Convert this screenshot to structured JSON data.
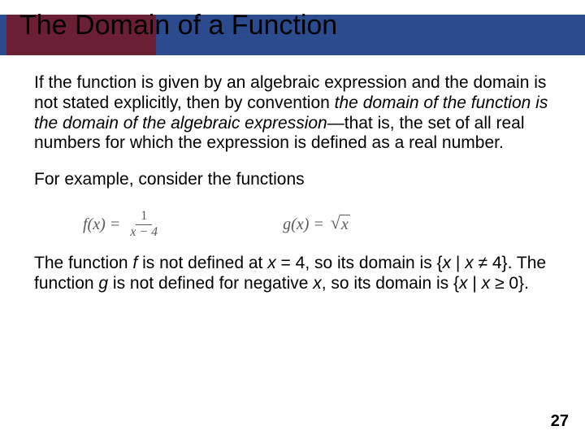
{
  "header": {
    "title": "The Domain of a Function",
    "blue_color": "#2b4b8e",
    "maroon_color": "#6b1f35"
  },
  "body": {
    "p1_a": "If the function is given by an algebraic expression and the domain is not stated explicitly, then by convention ",
    "p1_b": "the domain of the function is the domain of the algebraic expression",
    "p1_c": "—that is, the set of all real numbers for which the expression is defined as a real number.",
    "p2": "For example, consider the functions",
    "formula_f_lhs": "f(x)  =",
    "formula_f_num": "1",
    "formula_f_den": "x − 4",
    "formula_g_lhs": "g(x)  =",
    "formula_g_rad": "x",
    "p3_a": "The function ",
    "p3_b": "f",
    "p3_c": " is not defined at ",
    "p3_d": "x",
    "p3_e": " = 4, so its domain is {",
    "p3_f": "x",
    "p3_g": " | ",
    "p3_h": "x",
    "p3_i": " ≠ 4}. The function ",
    "p3_j": "g",
    "p3_k": " is not defined for negative ",
    "p3_l": "x",
    "p3_m": ", so its domain is {",
    "p3_n": "x",
    "p3_o": " | ",
    "p3_p": "x",
    "p3_q": " ≥ 0}."
  },
  "page_number": "27"
}
